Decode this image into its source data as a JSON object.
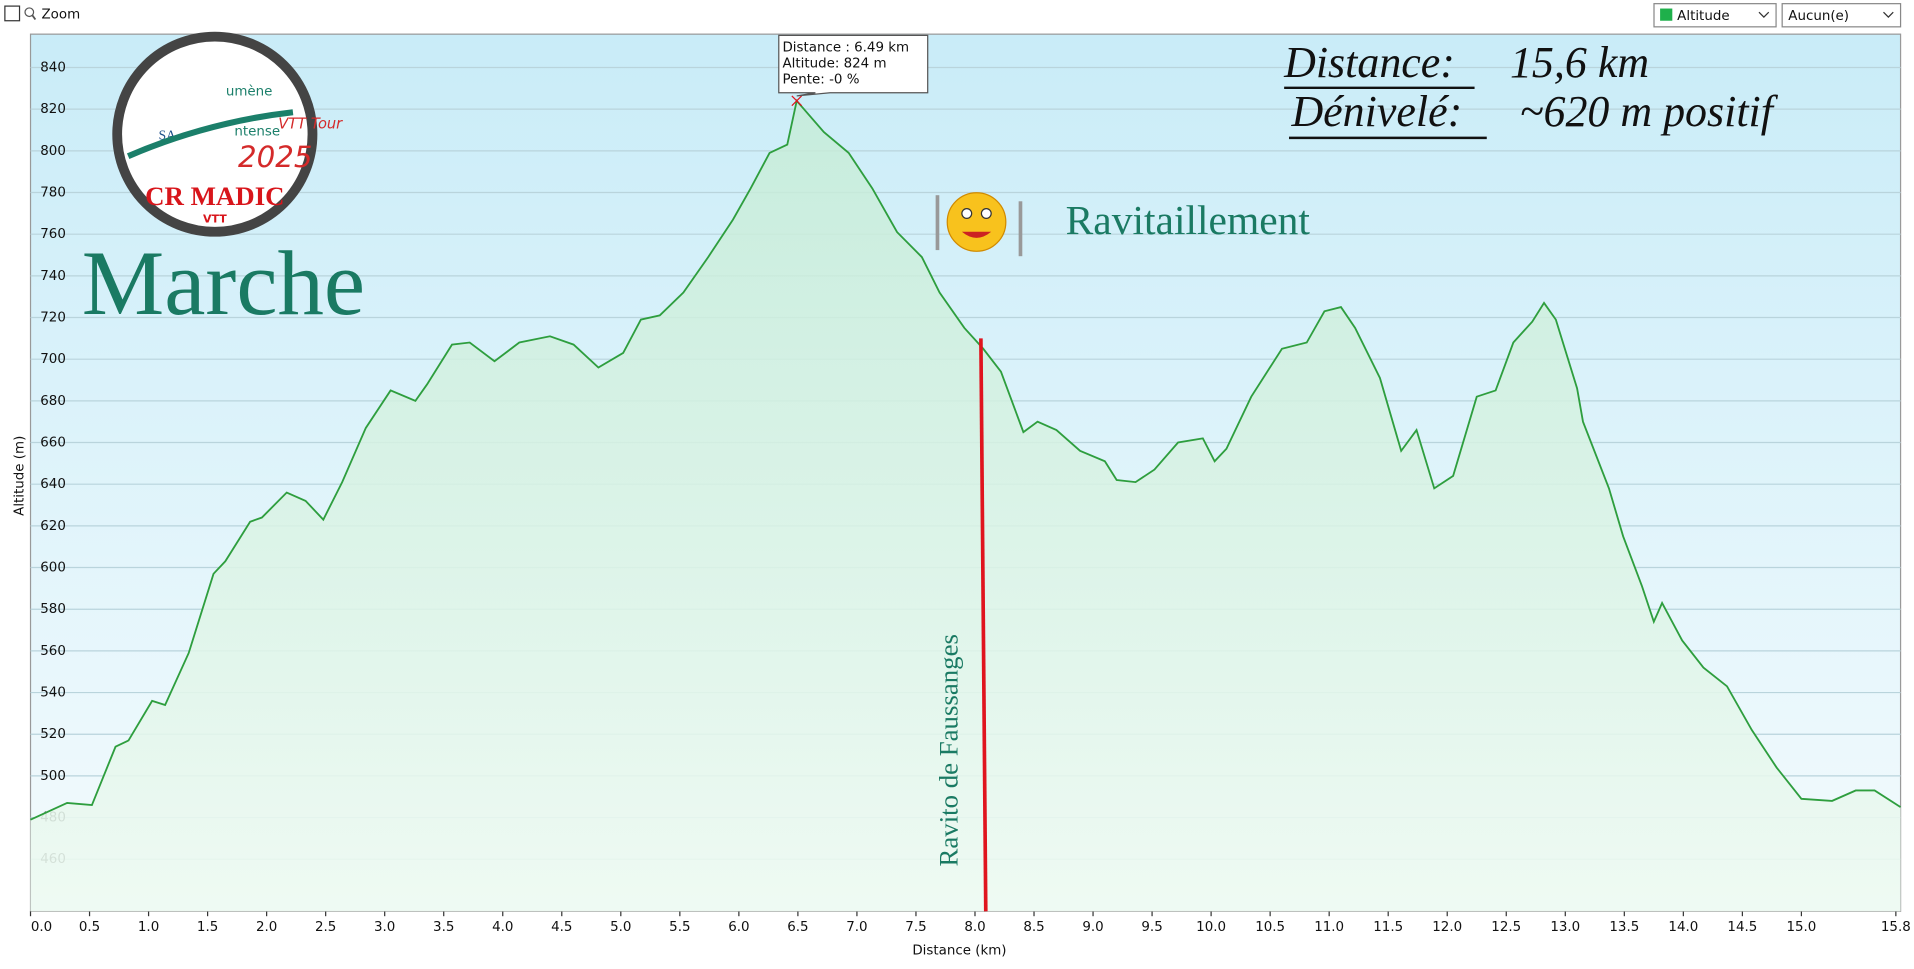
{
  "toolbar": {
    "zoom": "Zoom",
    "select_1": "Altitude",
    "select_2": "Aucun(e)"
  },
  "chart_data": {
    "type": "line",
    "x_label": "Distance    (km)",
    "y_label": "Altitude (m)",
    "x": [
      0,
      0.31,
      0.52,
      0.72,
      0.83,
      1.03,
      1.14,
      1.34,
      1.55,
      1.65,
      1.86,
      1.96,
      2.17,
      2.33,
      2.48,
      2.64,
      2.84,
      3.05,
      3.26,
      3.36,
      3.57,
      3.72,
      3.93,
      4.14,
      4.4,
      4.6,
      4.81,
      5.02,
      5.17,
      5.33,
      5.53,
      5.74,
      5.95,
      6.1,
      6.26,
      6.41,
      6.49,
      6.72,
      6.93,
      7.13,
      7.34,
      7.55,
      7.7,
      7.91,
      8.07,
      8.22,
      8.41,
      8.53,
      8.69,
      8.89,
      9.1,
      9.2,
      9.36,
      9.52,
      9.72,
      9.93,
      10.03,
      10.13,
      10.34,
      10.6,
      10.81,
      10.96,
      11.1,
      11.22,
      11.43,
      11.61,
      11.74,
      11.89,
      12.05,
      12.25,
      12.41,
      12.56,
      12.72,
      12.82,
      12.92,
      13.1,
      13.15,
      13.37,
      13.49,
      13.65,
      13.75,
      13.82,
      13.99,
      14.17,
      14.37,
      14.58,
      14.79,
      15.0,
      15.26,
      15.46,
      15.62,
      15.84
    ],
    "series": [
      {
        "name": "Altitude",
        "color": "#2e9e3e",
        "values": [
          479,
          487,
          486,
          514,
          517,
          536,
          534,
          559,
          597,
          603,
          622,
          624,
          636,
          632,
          623,
          641,
          667,
          685,
          680,
          688,
          707,
          708,
          699,
          708,
          711,
          707,
          696,
          703,
          719,
          721,
          732,
          749,
          767,
          782,
          799,
          803,
          824,
          809,
          799,
          782,
          761,
          749,
          732,
          715,
          705,
          694,
          665,
          670,
          666,
          656,
          651,
          642,
          641,
          647,
          660,
          662,
          651,
          657,
          682,
          705,
          708,
          723,
          725,
          715,
          691,
          656,
          666,
          638,
          644,
          682,
          685,
          708,
          718,
          727,
          719,
          686,
          670,
          638,
          615,
          591,
          574,
          583,
          565,
          552,
          543,
          522,
          504,
          489,
          488,
          493,
          493,
          485
        ]
      }
    ],
    "xlim": [
      0,
      15.84
    ],
    "ylim": [
      435,
      856
    ],
    "xticks": [
      {
        "value": 0,
        "label": "0.0"
      },
      0.5,
      {
        "value": 1,
        "label": "1.0"
      },
      1.5,
      {
        "value": 2,
        "label": "2.0"
      },
      2.5,
      {
        "value": 3,
        "label": "3.0"
      },
      3.5,
      {
        "value": 4,
        "label": "4.0"
      },
      4.5,
      {
        "value": 5,
        "label": "5.0"
      },
      5.5,
      {
        "value": 6,
        "label": "6.0"
      },
      6.5,
      {
        "value": 7,
        "label": "7.0"
      },
      7.5,
      {
        "value": 8,
        "label": "8.0"
      },
      8.5,
      {
        "value": 9,
        "label": "9.0"
      },
      9.5,
      {
        "value": 10,
        "label": "10.0"
      },
      10.5,
      {
        "value": 11,
        "label": "11.0"
      },
      11.5,
      {
        "value": 12,
        "label": "12.0"
      },
      12.5,
      {
        "value": 13,
        "label": "13.0"
      },
      13.5,
      {
        "value": 14,
        "label": "14.0"
      },
      14.5,
      {
        "value": 15,
        "label": "15.0"
      },
      15.8
    ],
    "yticks": [
      460,
      480,
      500,
      520,
      540,
      560,
      580,
      600,
      620,
      640,
      660,
      680,
      700,
      720,
      740,
      760,
      780,
      800,
      820,
      840
    ],
    "grid": true,
    "tooltip": [
      "Distance  : 6.49 km",
      "Altitude: 824 m",
      "Pente: -0 %"
    ],
    "ravito": {
      "label": "Ravito  de Faussanges",
      "x": 8.05,
      "altitude": 710
    },
    "annotations": {
      "marche": "Marche",
      "ravitaillement": "Ravitaillement",
      "distance_label": "Distance:",
      "distance_value": "15,6 km",
      "denivele_label": "Dénivelé:",
      "denivele_value": "~620 m positif"
    },
    "logo": {
      "top": "umène",
      "middle": "ntense",
      "tour": "VTT Tour",
      "year": "2025",
      "club": "CR MADIC",
      "sub": "VTT"
    }
  }
}
